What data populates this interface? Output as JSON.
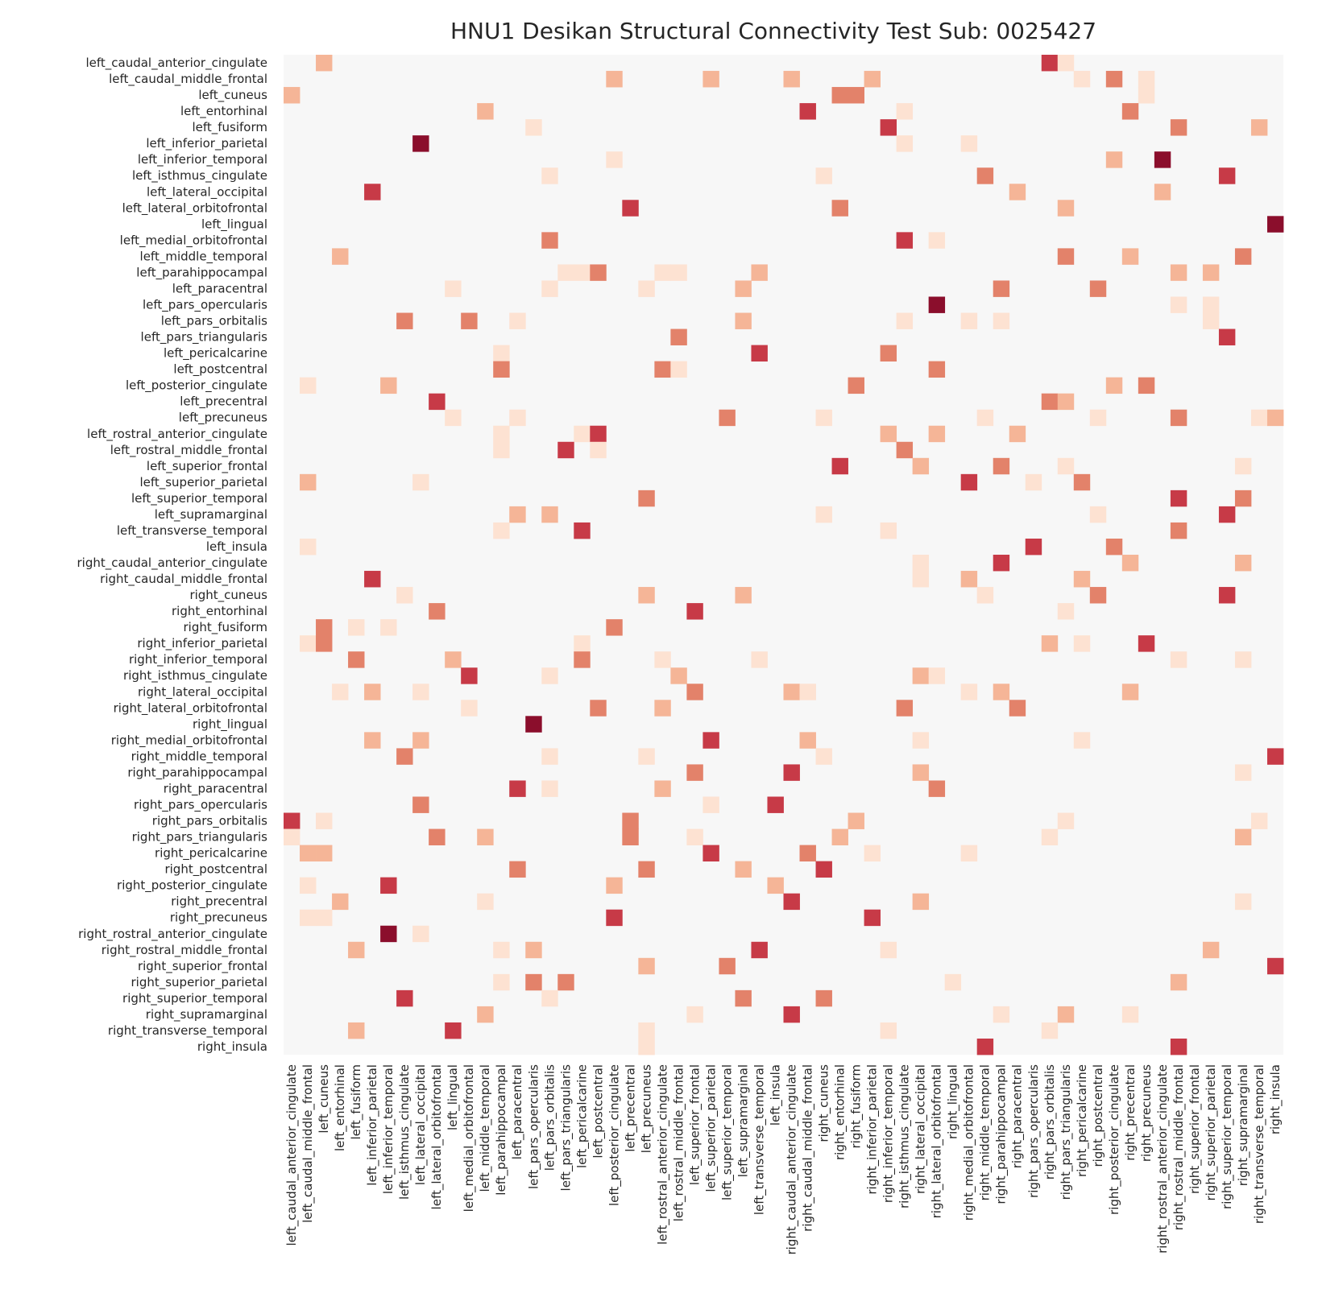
{
  "chart_data": {
    "type": "heatmap",
    "title": "HNU1 Desikan Structural Connectivity Test Sub: 0025427",
    "xlabel": "",
    "ylabel": "",
    "grid": false,
    "colormap": "RdBu_r (positive half: light grey to dark red)",
    "background_color": "#f7f7f7",
    "value_colors": {
      "1": "#fde2d2",
      "2": "#f5b597",
      "3": "#e3826a",
      "4": "#c73a47",
      "5": "#8b0e2c"
    },
    "labels": [
      "left_caudal_anterior_cingulate",
      "left_caudal_middle_frontal",
      "left_cuneus",
      "left_entorhinal",
      "left_fusiform",
      "left_inferior_parietal",
      "left_inferior_temporal",
      "left_isthmus_cingulate",
      "left_lateral_occipital",
      "left_lateral_orbitofrontal",
      "left_lingual",
      "left_medial_orbitofrontal",
      "left_middle_temporal",
      "left_parahippocampal",
      "left_paracentral",
      "left_pars_opercularis",
      "left_pars_orbitalis",
      "left_pars_triangularis",
      "left_pericalcarine",
      "left_postcentral",
      "left_posterior_cingulate",
      "left_precentral",
      "left_precuneus",
      "left_rostral_anterior_cingulate",
      "left_rostral_middle_frontal",
      "left_superior_frontal",
      "left_superior_parietal",
      "left_superior_temporal",
      "left_supramarginal",
      "left_transverse_temporal",
      "left_insula",
      "right_caudal_anterior_cingulate",
      "right_caudal_middle_frontal",
      "right_cuneus",
      "right_entorhinal",
      "right_fusiform",
      "right_inferior_parietal",
      "right_inferior_temporal",
      "right_isthmus_cingulate",
      "right_lateral_occipital",
      "right_lateral_orbitofrontal",
      "right_lingual",
      "right_medial_orbitofrontal",
      "right_middle_temporal",
      "right_parahippocampal",
      "right_paracentral",
      "right_pars_opercularis",
      "right_pars_orbitalis",
      "right_pars_triangularis",
      "right_pericalcarine",
      "right_postcentral",
      "right_posterior_cingulate",
      "right_precentral",
      "right_precuneus",
      "right_rostral_anterior_cingulate",
      "right_rostral_middle_frontal",
      "right_superior_frontal",
      "right_superior_parietal",
      "right_superior_temporal",
      "right_supramarginal",
      "right_transverse_temporal",
      "right_insula"
    ],
    "cells": [
      [
        0,
        2,
        2
      ],
      [
        0,
        47,
        4
      ],
      [
        0,
        48,
        1
      ],
      [
        1,
        20,
        2
      ],
      [
        1,
        26,
        2
      ],
      [
        1,
        31,
        2
      ],
      [
        1,
        36,
        2
      ],
      [
        1,
        49,
        1
      ],
      [
        1,
        51,
        3
      ],
      [
        1,
        53,
        1
      ],
      [
        2,
        0,
        2
      ],
      [
        2,
        34,
        3
      ],
      [
        2,
        35,
        3
      ],
      [
        2,
        53,
        1
      ],
      [
        3,
        12,
        2
      ],
      [
        3,
        32,
        4
      ],
      [
        3,
        38,
        1
      ],
      [
        3,
        52,
        3
      ],
      [
        4,
        15,
        1
      ],
      [
        4,
        37,
        4
      ],
      [
        4,
        55,
        3
      ],
      [
        4,
        60,
        2
      ],
      [
        5,
        8,
        5
      ],
      [
        5,
        38,
        1
      ],
      [
        5,
        42,
        1
      ],
      [
        6,
        20,
        1
      ],
      [
        6,
        51,
        2
      ],
      [
        6,
        54,
        5
      ],
      [
        7,
        16,
        1
      ],
      [
        7,
        33,
        1
      ],
      [
        7,
        43,
        3
      ],
      [
        7,
        58,
        4
      ],
      [
        8,
        5,
        4
      ],
      [
        8,
        45,
        2
      ],
      [
        8,
        54,
        2
      ],
      [
        9,
        21,
        4
      ],
      [
        9,
        34,
        3
      ],
      [
        9,
        48,
        2
      ],
      [
        10,
        61,
        5
      ],
      [
        11,
        16,
        3
      ],
      [
        11,
        38,
        4
      ],
      [
        11,
        40,
        1
      ],
      [
        12,
        3,
        2
      ],
      [
        12,
        48,
        3
      ],
      [
        12,
        52,
        2
      ],
      [
        12,
        59,
        3
      ],
      [
        13,
        17,
        1
      ],
      [
        13,
        18,
        1
      ],
      [
        13,
        19,
        3
      ],
      [
        13,
        23,
        1
      ],
      [
        13,
        24,
        1
      ],
      [
        13,
        29,
        2
      ],
      [
        13,
        55,
        2
      ],
      [
        13,
        57,
        2
      ],
      [
        14,
        10,
        1
      ],
      [
        14,
        16,
        1
      ],
      [
        14,
        22,
        1
      ],
      [
        14,
        28,
        2
      ],
      [
        14,
        44,
        3
      ],
      [
        14,
        50,
        3
      ],
      [
        15,
        40,
        5
      ],
      [
        15,
        55,
        1
      ],
      [
        15,
        57,
        1
      ],
      [
        16,
        7,
        3
      ],
      [
        16,
        11,
        3
      ],
      [
        16,
        14,
        1
      ],
      [
        16,
        28,
        2
      ],
      [
        16,
        38,
        1
      ],
      [
        16,
        42,
        1
      ],
      [
        16,
        44,
        1
      ],
      [
        16,
        57,
        1
      ],
      [
        17,
        24,
        3
      ],
      [
        17,
        58,
        4
      ],
      [
        18,
        13,
        1
      ],
      [
        18,
        29,
        4
      ],
      [
        18,
        37,
        3
      ],
      [
        19,
        13,
        3
      ],
      [
        19,
        23,
        3
      ],
      [
        19,
        24,
        1
      ],
      [
        19,
        40,
        3
      ],
      [
        20,
        1,
        1
      ],
      [
        20,
        6,
        2
      ],
      [
        20,
        35,
        3
      ],
      [
        20,
        51,
        2
      ],
      [
        20,
        53,
        3
      ],
      [
        21,
        9,
        4
      ],
      [
        21,
        47,
        3
      ],
      [
        21,
        48,
        2
      ],
      [
        22,
        10,
        1
      ],
      [
        22,
        14,
        1
      ],
      [
        22,
        27,
        3
      ],
      [
        22,
        33,
        1
      ],
      [
        22,
        43,
        1
      ],
      [
        22,
        50,
        1
      ],
      [
        22,
        55,
        3
      ],
      [
        22,
        60,
        1
      ],
      [
        22,
        61,
        2
      ],
      [
        23,
        13,
        1
      ],
      [
        23,
        18,
        1
      ],
      [
        23,
        19,
        4
      ],
      [
        23,
        37,
        2
      ],
      [
        23,
        40,
        2
      ],
      [
        23,
        45,
        2
      ],
      [
        24,
        13,
        1
      ],
      [
        24,
        17,
        4
      ],
      [
        24,
        19,
        1
      ],
      [
        24,
        38,
        3
      ],
      [
        25,
        34,
        4
      ],
      [
        25,
        39,
        2
      ],
      [
        25,
        44,
        3
      ],
      [
        25,
        48,
        1
      ],
      [
        25,
        59,
        1
      ],
      [
        26,
        1,
        2
      ],
      [
        26,
        8,
        1
      ],
      [
        26,
        42,
        4
      ],
      [
        26,
        46,
        1
      ],
      [
        26,
        49,
        3
      ],
      [
        27,
        22,
        3
      ],
      [
        27,
        55,
        4
      ],
      [
        27,
        59,
        3
      ],
      [
        28,
        14,
        2
      ],
      [
        28,
        16,
        2
      ],
      [
        28,
        33,
        1
      ],
      [
        28,
        50,
        1
      ],
      [
        28,
        58,
        4
      ],
      [
        29,
        13,
        1
      ],
      [
        29,
        18,
        4
      ],
      [
        29,
        37,
        1
      ],
      [
        29,
        55,
        3
      ],
      [
        30,
        1,
        1
      ],
      [
        30,
        46,
        4
      ],
      [
        30,
        51,
        3
      ],
      [
        31,
        39,
        1
      ],
      [
        31,
        44,
        4
      ],
      [
        31,
        52,
        2
      ],
      [
        31,
        59,
        2
      ],
      [
        32,
        5,
        4
      ],
      [
        32,
        39,
        1
      ],
      [
        32,
        42,
        2
      ],
      [
        32,
        49,
        2
      ],
      [
        33,
        7,
        1
      ],
      [
        33,
        22,
        2
      ],
      [
        33,
        28,
        2
      ],
      [
        33,
        43,
        1
      ],
      [
        33,
        50,
        3
      ],
      [
        33,
        58,
        4
      ],
      [
        34,
        9,
        3
      ],
      [
        34,
        25,
        4
      ],
      [
        34,
        48,
        1
      ],
      [
        35,
        2,
        3
      ],
      [
        35,
        4,
        1
      ],
      [
        35,
        6,
        1
      ],
      [
        35,
        20,
        3
      ],
      [
        36,
        1,
        1
      ],
      [
        36,
        2,
        3
      ],
      [
        36,
        18,
        1
      ],
      [
        36,
        47,
        2
      ],
      [
        36,
        49,
        1
      ],
      [
        36,
        53,
        4
      ],
      [
        37,
        4,
        3
      ],
      [
        37,
        10,
        2
      ],
      [
        37,
        18,
        3
      ],
      [
        37,
        23,
        1
      ],
      [
        37,
        29,
        1
      ],
      [
        37,
        55,
        1
      ],
      [
        37,
        59,
        1
      ],
      [
        38,
        11,
        4
      ],
      [
        38,
        16,
        1
      ],
      [
        38,
        24,
        2
      ],
      [
        38,
        39,
        2
      ],
      [
        38,
        40,
        1
      ],
      [
        39,
        3,
        1
      ],
      [
        39,
        5,
        2
      ],
      [
        39,
        8,
        1
      ],
      [
        39,
        25,
        3
      ],
      [
        39,
        31,
        2
      ],
      [
        39,
        32,
        1
      ],
      [
        39,
        42,
        1
      ],
      [
        39,
        44,
        2
      ],
      [
        39,
        52,
        2
      ],
      [
        40,
        11,
        1
      ],
      [
        40,
        19,
        3
      ],
      [
        40,
        23,
        2
      ],
      [
        40,
        38,
        3
      ],
      [
        40,
        45,
        3
      ],
      [
        41,
        15,
        5
      ],
      [
        42,
        5,
        2
      ],
      [
        42,
        8,
        2
      ],
      [
        42,
        26,
        4
      ],
      [
        42,
        32,
        2
      ],
      [
        42,
        39,
        1
      ],
      [
        42,
        49,
        1
      ],
      [
        43,
        7,
        3
      ],
      [
        43,
        16,
        1
      ],
      [
        43,
        22,
        1
      ],
      [
        43,
        33,
        1
      ],
      [
        43,
        61,
        4
      ],
      [
        44,
        25,
        3
      ],
      [
        44,
        31,
        4
      ],
      [
        44,
        39,
        2
      ],
      [
        44,
        59,
        1
      ],
      [
        45,
        14,
        4
      ],
      [
        45,
        16,
        1
      ],
      [
        45,
        23,
        2
      ],
      [
        45,
        40,
        3
      ],
      [
        46,
        8,
        3
      ],
      [
        46,
        26,
        1
      ],
      [
        46,
        30,
        4
      ],
      [
        47,
        0,
        4
      ],
      [
        47,
        2,
        1
      ],
      [
        47,
        21,
        3
      ],
      [
        47,
        35,
        2
      ],
      [
        47,
        48,
        1
      ],
      [
        47,
        60,
        1
      ],
      [
        48,
        0,
        1
      ],
      [
        48,
        9,
        3
      ],
      [
        48,
        12,
        2
      ],
      [
        48,
        21,
        3
      ],
      [
        48,
        25,
        1
      ],
      [
        48,
        34,
        2
      ],
      [
        48,
        47,
        1
      ],
      [
        48,
        59,
        2
      ],
      [
        49,
        1,
        2
      ],
      [
        49,
        2,
        2
      ],
      [
        49,
        26,
        4
      ],
      [
        49,
        32,
        3
      ],
      [
        49,
        36,
        1
      ],
      [
        49,
        42,
        1
      ],
      [
        50,
        14,
        3
      ],
      [
        50,
        22,
        3
      ],
      [
        50,
        28,
        2
      ],
      [
        50,
        33,
        4
      ],
      [
        51,
        1,
        1
      ],
      [
        51,
        6,
        4
      ],
      [
        51,
        20,
        2
      ],
      [
        51,
        30,
        2
      ],
      [
        52,
        3,
        2
      ],
      [
        52,
        12,
        1
      ],
      [
        52,
        31,
        4
      ],
      [
        52,
        39,
        2
      ],
      [
        52,
        59,
        1
      ],
      [
        53,
        1,
        1
      ],
      [
        53,
        2,
        1
      ],
      [
        53,
        20,
        4
      ],
      [
        53,
        36,
        4
      ],
      [
        54,
        6,
        5
      ],
      [
        54,
        8,
        1
      ],
      [
        55,
        4,
        2
      ],
      [
        55,
        13,
        1
      ],
      [
        55,
        15,
        2
      ],
      [
        55,
        29,
        4
      ],
      [
        55,
        37,
        1
      ],
      [
        55,
        57,
        2
      ],
      [
        56,
        22,
        2
      ],
      [
        56,
        27,
        3
      ],
      [
        56,
        61,
        4
      ],
      [
        57,
        13,
        1
      ],
      [
        57,
        15,
        3
      ],
      [
        57,
        17,
        3
      ],
      [
        57,
        41,
        1
      ],
      [
        57,
        55,
        2
      ],
      [
        58,
        7,
        4
      ],
      [
        58,
        16,
        1
      ],
      [
        58,
        28,
        3
      ],
      [
        58,
        33,
        3
      ],
      [
        59,
        12,
        2
      ],
      [
        59,
        25,
        1
      ],
      [
        59,
        31,
        4
      ],
      [
        59,
        44,
        1
      ],
      [
        59,
        48,
        2
      ],
      [
        59,
        52,
        1
      ],
      [
        60,
        4,
        2
      ],
      [
        60,
        10,
        4
      ],
      [
        60,
        22,
        1
      ],
      [
        60,
        37,
        1
      ],
      [
        60,
        47,
        1
      ],
      [
        61,
        22,
        1
      ],
      [
        61,
        43,
        4
      ],
      [
        61,
        55,
        4
      ]
    ]
  }
}
